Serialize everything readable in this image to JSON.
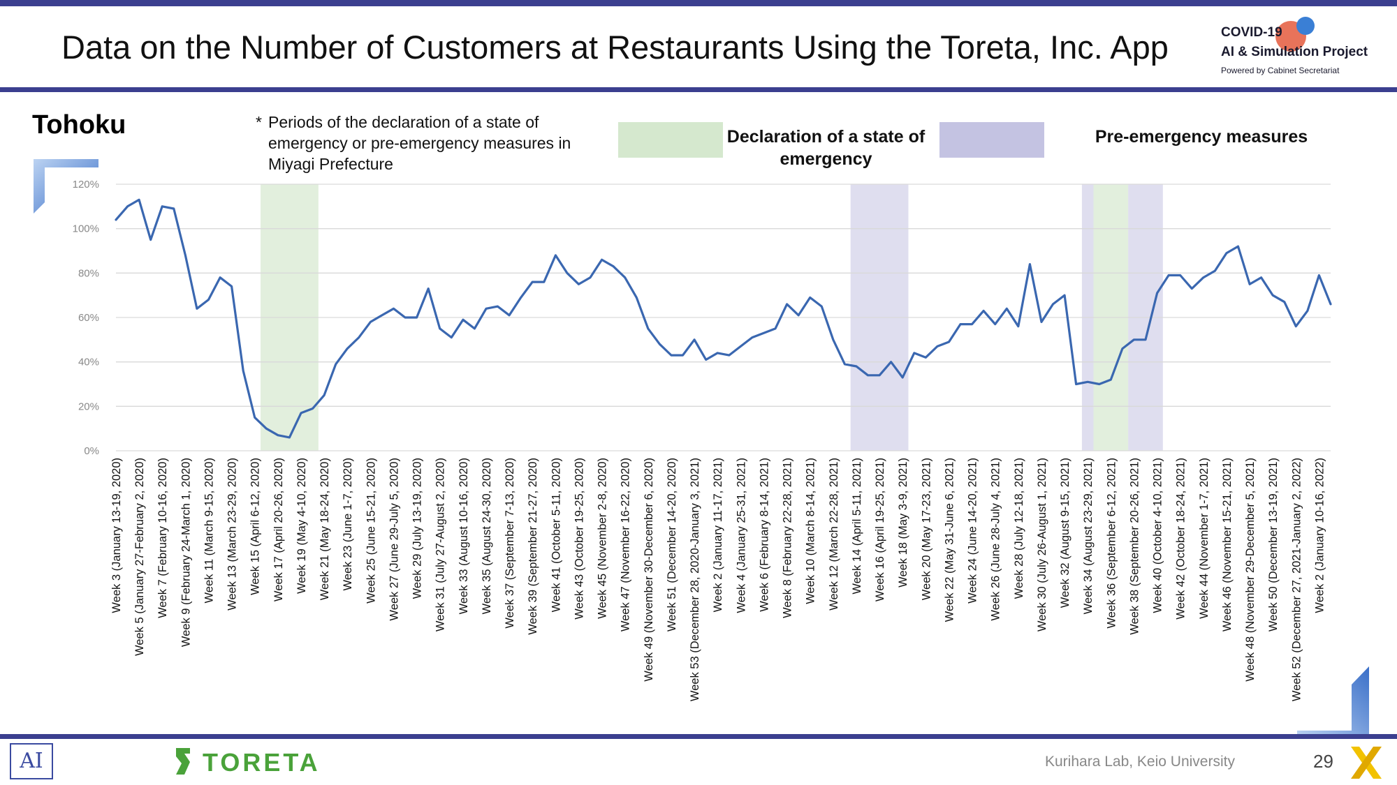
{
  "title": "Data on the Number of Customers at Restaurants Using the Toreta, Inc. App",
  "logo": {
    "line1": "COVID-19",
    "line2": "AI & Simulation Project",
    "line3": "Powered by Cabinet Secretariat"
  },
  "region": "Tohoku",
  "note": {
    "star": "*",
    "text": "Periods of the declaration of a state of emergency or pre-emergency measures in Miyagi Prefecture"
  },
  "legend": {
    "emergency": "Declaration of a state of emergency",
    "pre_emergency": "Pre-emergency measures"
  },
  "colors": {
    "line": "#3a67b0",
    "emergency": "#d5e8ce",
    "pre_emergency": "#c4c3e2",
    "grid": "#d9d9d9",
    "accent": "#3b3f8f"
  },
  "chart_data": {
    "type": "line",
    "title": "Tohoku",
    "xlabel": "",
    "ylabel": "",
    "ylim": [
      0,
      120
    ],
    "yticks": [
      "0%",
      "20%",
      "40%",
      "60%",
      "80%",
      "100%",
      "120%"
    ],
    "ytick_values": [
      0,
      20,
      40,
      60,
      80,
      100,
      120
    ],
    "n_points": 106,
    "x_tick_labels": [
      {
        "i": 0,
        "label": "Week 3 (January 13-19, 2020)"
      },
      {
        "i": 2,
        "label": "Week 5 (January 27-February 2, 2020)"
      },
      {
        "i": 4,
        "label": "Week 7 (February 10-16, 2020)"
      },
      {
        "i": 6,
        "label": "Week 9 (February 24-March 1, 2020)"
      },
      {
        "i": 8,
        "label": "Week 11 (March 9-15, 2020)"
      },
      {
        "i": 10,
        "label": "Week 13 (March 23-29, 2020)"
      },
      {
        "i": 12,
        "label": "Week 15 (April 6-12, 2020)"
      },
      {
        "i": 14,
        "label": "Week 17 (April 20-26, 2020)"
      },
      {
        "i": 16,
        "label": "Week 19 (May 4-10, 2020)"
      },
      {
        "i": 18,
        "label": "Week 21 (May 18-24, 2020)"
      },
      {
        "i": 20,
        "label": "Week 23 (June 1-7, 2020)"
      },
      {
        "i": 22,
        "label": "Week 25 (June 15-21, 2020)"
      },
      {
        "i": 24,
        "label": "Week 27 (June 29-July 5, 2020)"
      },
      {
        "i": 26,
        "label": "Week 29 (July 13-19, 2020)"
      },
      {
        "i": 28,
        "label": "Week 31 (July 27-August 2, 2020)"
      },
      {
        "i": 30,
        "label": "Week 33 (August 10-16, 2020)"
      },
      {
        "i": 32,
        "label": "Week 35 (August 24-30, 2020)"
      },
      {
        "i": 34,
        "label": "Week 37 (September 7-13, 2020)"
      },
      {
        "i": 36,
        "label": "Week 39 (September 21-27, 2020)"
      },
      {
        "i": 38,
        "label": "Week 41 (October 5-11, 2020)"
      },
      {
        "i": 40,
        "label": "Week 43 (October 19-25, 2020)"
      },
      {
        "i": 42,
        "label": "Week 45 (November 2-8, 2020)"
      },
      {
        "i": 44,
        "label": "Week 47 (November 16-22, 2020)"
      },
      {
        "i": 46,
        "label": "Week 49 (November 30-December 6, 2020)"
      },
      {
        "i": 48,
        "label": "Week 51 (December 14-20, 2020)"
      },
      {
        "i": 50,
        "label": "Week 53 (December 28, 2020-January 3, 2021)"
      },
      {
        "i": 52,
        "label": "Week 2 (January 11-17, 2021)"
      },
      {
        "i": 54,
        "label": "Week 4 (January 25-31, 2021)"
      },
      {
        "i": 56,
        "label": "Week 6 (February 8-14, 2021)"
      },
      {
        "i": 58,
        "label": "Week 8 (February 22-28, 2021)"
      },
      {
        "i": 60,
        "label": "Week 10 (March 8-14, 2021)"
      },
      {
        "i": 62,
        "label": "Week 12 (March 22-28, 2021)"
      },
      {
        "i": 64,
        "label": "Week 14 (April 5-11, 2021)"
      },
      {
        "i": 66,
        "label": "Week 16 (April 19-25, 2021)"
      },
      {
        "i": 68,
        "label": "Week 18 (May 3-9, 2021)"
      },
      {
        "i": 70,
        "label": "Week 20 (May 17-23, 2021)"
      },
      {
        "i": 72,
        "label": "Week 22 (May 31-June 6, 2021)"
      },
      {
        "i": 74,
        "label": "Week 24 (June 14-20, 2021)"
      },
      {
        "i": 76,
        "label": "Week 26 (June 28-July 4, 2021)"
      },
      {
        "i": 78,
        "label": "Week 28 (July 12-18, 2021)"
      },
      {
        "i": 80,
        "label": "Week 30 (July 26-August 1, 2021)"
      },
      {
        "i": 82,
        "label": "Week 32 (August 9-15, 2021)"
      },
      {
        "i": 84,
        "label": "Week 34 (August 23-29, 2021)"
      },
      {
        "i": 86,
        "label": "Week 36 (September 6-12, 2021)"
      },
      {
        "i": 88,
        "label": "Week 38 (September 20-26, 2021)"
      },
      {
        "i": 90,
        "label": "Week 40 (October 4-10, 2021)"
      },
      {
        "i": 92,
        "label": "Week 42 (October 18-24, 2021)"
      },
      {
        "i": 94,
        "label": "Week 44 (November 1-7, 2021)"
      },
      {
        "i": 96,
        "label": "Week 46 (November 15-21, 2021)"
      },
      {
        "i": 98,
        "label": "Week 48 (November 29-December 5, 2021)"
      },
      {
        "i": 100,
        "label": "Week 50 (December 13-19, 2021)"
      },
      {
        "i": 102,
        "label": "Week 52 (December 27, 2021-January 2, 2022)"
      },
      {
        "i": 104,
        "label": "Week 2 (January 10-16, 2022)"
      }
    ],
    "series": [
      {
        "name": "Tohoku",
        "values": [
          104,
          110,
          113,
          95,
          110,
          109,
          88,
          64,
          68,
          78,
          74,
          36,
          15,
          10,
          7,
          6,
          17,
          19,
          25,
          39,
          46,
          51,
          58,
          61,
          64,
          60,
          60,
          73,
          55,
          51,
          59,
          55,
          64,
          65,
          61,
          69,
          76,
          76,
          88,
          80,
          75,
          78,
          86,
          83,
          78,
          69,
          55,
          48,
          43,
          43,
          50,
          41,
          44,
          43,
          47,
          51,
          53,
          55,
          66,
          61,
          69,
          65,
          50,
          39,
          38,
          34,
          34,
          40,
          33,
          44,
          42,
          47,
          49,
          57,
          57,
          63,
          57,
          64,
          56,
          84,
          58,
          66,
          70,
          30,
          31,
          30,
          32,
          46,
          50,
          50,
          71,
          79,
          79,
          73,
          78,
          81,
          89,
          92,
          75,
          78,
          70,
          67,
          56,
          63,
          79,
          66
        ]
      }
    ],
    "shaded_periods": [
      {
        "kind": "emergency",
        "start": 12.5,
        "end": 17.5
      },
      {
        "kind": "pre_emergency",
        "start": 63.5,
        "end": 68.5
      },
      {
        "kind": "pre_emergency",
        "start": 83.5,
        "end": 84.5
      },
      {
        "kind": "emergency",
        "start": 84.5,
        "end": 87.5
      },
      {
        "kind": "pre_emergency",
        "start": 87.5,
        "end": 90.5
      }
    ]
  },
  "footer": {
    "ai_logo": "AI",
    "company": "TORETA",
    "lab": "Kurihara Lab, Keio University",
    "page": "29"
  }
}
